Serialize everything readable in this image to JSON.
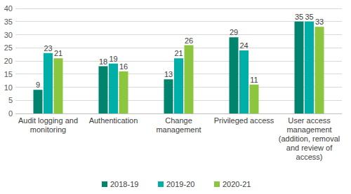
{
  "chart_data": {
    "type": "bar",
    "categories": [
      "Audit logging and monitoring",
      "Authentication",
      "Change management",
      "Privileged access",
      "User access management (addition, removal and review of access)"
    ],
    "series": [
      {
        "name": "2018-19",
        "color": "#00846d",
        "values": [
          9,
          18,
          13,
          29,
          35
        ]
      },
      {
        "name": "2019-20",
        "color": "#00b0a8",
        "values": [
          23,
          19,
          21,
          24,
          35
        ]
      },
      {
        "name": "2020-21",
        "color": "#8cc63f",
        "values": [
          21,
          16,
          26,
          11,
          33
        ]
      }
    ],
    "ylim": [
      0,
      40
    ],
    "yticks": [
      0,
      5,
      10,
      15,
      20,
      25,
      30,
      35,
      40
    ],
    "grid": true,
    "data_labels": true,
    "legend": "bottom"
  }
}
